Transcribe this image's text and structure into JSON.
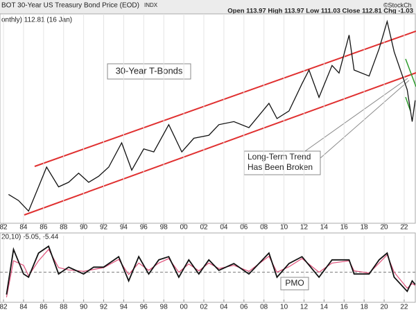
{
  "header": {
    "title": "BOT 30-Year US Treasury Bond Price (EOD)",
    "exchange": "INDX",
    "quote": "Open 113.97  High 113.97  Low 111.03  Close 112.81  Chg -1.03",
    "watermark": "©StockCh"
  },
  "chart_data": [
    {
      "type": "line",
      "subtitle": "onthly) 112.81 (16 Jan)",
      "annotations": [
        "30-Year T-Bonds",
        "Long-Term Trend",
        "Has Been Broken"
      ],
      "color": "#111111",
      "grid": true,
      "xlim": [
        1981.65,
        2023.18
      ],
      "ylim": [
        52,
        190
      ],
      "xticks": [
        {
          "value": 1982,
          "label": "82"
        },
        {
          "value": 1984,
          "label": "84"
        },
        {
          "value": 1986,
          "label": "86"
        },
        {
          "value": 1988,
          "label": "88"
        },
        {
          "value": 1990,
          "label": "90"
        },
        {
          "value": 1992,
          "label": "92"
        },
        {
          "value": 1994,
          "label": "94"
        },
        {
          "value": 1996,
          "label": "96"
        },
        {
          "value": 1998,
          "label": "98"
        },
        {
          "value": 2000,
          "label": "00"
        },
        {
          "value": 2002,
          "label": "02"
        },
        {
          "value": 2004,
          "label": "04"
        },
        {
          "value": 2006,
          "label": "06"
        },
        {
          "value": 2008,
          "label": "08"
        },
        {
          "value": 2010,
          "label": "10"
        },
        {
          "value": 2012,
          "label": "12"
        },
        {
          "value": 2014,
          "label": "14"
        },
        {
          "value": 2016,
          "label": "16"
        },
        {
          "value": 2018,
          "label": "18"
        },
        {
          "value": 2020,
          "label": "20"
        },
        {
          "value": 2022,
          "label": "22"
        }
      ],
      "x": [
        1982.5,
        1983.5,
        1984.5,
        1985.5,
        1986.3,
        1987.5,
        1988.5,
        1989.5,
        1990.5,
        1991.5,
        1992.5,
        1993.8,
        1994.8,
        1996,
        1997,
        1998.5,
        1999.8,
        2001,
        2002.5,
        2003.5,
        2005,
        2006.5,
        2008.5,
        2009.3,
        2010.5,
        2011.8,
        2012.5,
        2013.5,
        2014.8,
        2015.5,
        2016.5,
        2017,
        2018.5,
        2019.5,
        2020.3,
        2021,
        2022.3,
        2022.8,
        2023.1
      ],
      "values": [
        71,
        67,
        60,
        76,
        89,
        76,
        79,
        85,
        79,
        83,
        89,
        105,
        87,
        101,
        99,
        117,
        99,
        108,
        110,
        117,
        119,
        115,
        131,
        121,
        126,
        144,
        153,
        135,
        156,
        151,
        176,
        153,
        149,
        167,
        185,
        165,
        140,
        119,
        133
      ]
    },
    {
      "type": "line",
      "subtitle": "20,10) -5.05, -5.44",
      "annotations": [
        "PMO"
      ],
      "grid": true,
      "xlim": [
        1981.65,
        2023.18
      ],
      "ylim": [
        -6,
        8
      ],
      "xticks": [
        {
          "value": 1982,
          "label": "82"
        },
        {
          "value": 1984,
          "label": "84"
        },
        {
          "value": 1986,
          "label": "86"
        },
        {
          "value": 1988,
          "label": "88"
        },
        {
          "value": 1990,
          "label": "90"
        },
        {
          "value": 1992,
          "label": "92"
        },
        {
          "value": 1994,
          "label": "94"
        },
        {
          "value": 1996,
          "label": "96"
        },
        {
          "value": 1998,
          "label": "98"
        },
        {
          "value": 2000,
          "label": "00"
        },
        {
          "value": 2002,
          "label": "02"
        },
        {
          "value": 2004,
          "label": "04"
        },
        {
          "value": 2006,
          "label": "06"
        },
        {
          "value": 2008,
          "label": "08"
        },
        {
          "value": 2010,
          "label": "10"
        },
        {
          "value": 2012,
          "label": "12"
        },
        {
          "value": 2014,
          "label": "14"
        },
        {
          "value": 2016,
          "label": "16"
        },
        {
          "value": 2018,
          "label": "18"
        },
        {
          "value": 2020,
          "label": "20"
        },
        {
          "value": 2022,
          "label": "22"
        }
      ],
      "zero_line": 0,
      "x": [
        1982.3,
        1983,
        1984,
        1984.5,
        1985.5,
        1986.5,
        1987.5,
        1988.5,
        1990,
        1991,
        1992,
        1993.5,
        1994.5,
        1995.5,
        1996.5,
        1997.5,
        1998.5,
        1999.5,
        2000.5,
        2001.5,
        2002.5,
        2003.5,
        2005,
        2006.5,
        2008.5,
        2009.3,
        2010.5,
        2011.8,
        2013.5,
        2014.8,
        2016.5,
        2017,
        2018.5,
        2019.5,
        2020.3,
        2021,
        2022.3,
        2022.8,
        2023.1
      ],
      "series": [
        {
          "color": "#111111",
          "values": [
            -4.9,
            5,
            -0.4,
            -1.1,
            4.2,
            5.7,
            -0.4,
            1.1,
            -0.4,
            1.1,
            1.1,
            3.4,
            -1.9,
            3.4,
            -0.4,
            2.7,
            3.4,
            -1.1,
            2.7,
            -0.4,
            2.7,
            0.4,
            1.9,
            -0.4,
            4.2,
            -1.1,
            1.9,
            3.4,
            -1.1,
            2.7,
            2.7,
            -0.4,
            -0.4,
            2.7,
            4.2,
            -1.1,
            -4.2,
            -1.9,
            -2.7
          ]
        },
        {
          "color": "#e0507a",
          "values": [
            -5.5,
            2.5,
            1.5,
            -0.8,
            2.5,
            5,
            1,
            0.5,
            0.2,
            0.6,
            1,
            2.8,
            -0.5,
            2,
            0.4,
            2,
            3,
            0,
            1.8,
            0.3,
            2,
            0.8,
            1.5,
            0.2,
            3.5,
            0,
            1.2,
            3,
            0,
            2,
            2.5,
            0.3,
            -0.2,
            2,
            3.8,
            0,
            -3.5,
            -2.5,
            -2.9
          ]
        }
      ]
    }
  ]
}
